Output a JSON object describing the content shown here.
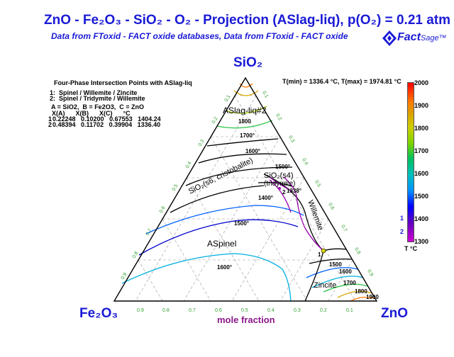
{
  "header": {
    "title": "ZnO - Fe₂O₃ - SiO₂ - O₂ -  Projection (ASlag-liq),  p(O₂) = 0.21 atm",
    "subtitle": "Data from FToxid - FACT oxide databases,  Data from FToxid - FACT oxide",
    "logo_text": "Fact",
    "logo_sage": "Sage",
    "logo_tm": "™"
  },
  "vertices": {
    "top": "SiO₂",
    "left": "Fe₂O₃",
    "right": "ZnO"
  },
  "axis_label": "mole fraction",
  "legend_box": {
    "heading": "Four-Phase Intersection Points with ASlag-liq",
    "items": [
      "1:  Spinel / Willemite / Zincite",
      "2:  Spinel / Tridymite / Willemite"
    ],
    "key": "A = SiO2,  B = Fe2O3,  C = ZnO",
    "columns": "  X(A)      X(B)      X(C)      °C",
    "rows": [
      "0.22248   0.10200   0.67553   1404.24",
      "0.48394   0.11702   0.39904   1336.40"
    ],
    "row_ids": [
      "1",
      "2"
    ]
  },
  "trange": "T(min) = 1336.4 °C, T(max) = 1974.81 °C",
  "colorbar": {
    "ticks": [
      "2000",
      "1900",
      "1800",
      "1700",
      "1600",
      "1500",
      "1400",
      "1300"
    ],
    "unit": "T °C",
    "markers": [
      "1",
      "2"
    ],
    "gradient_colors": [
      "#ff0000",
      "#ff7a00",
      "#cfcf00",
      "#7fd400",
      "#00c060",
      "#00bfbf",
      "#0090ff",
      "#0000ff",
      "#6000c0",
      "#d000d0"
    ]
  },
  "phase_labels": {
    "slag": "ASlag-liq#2",
    "cristobalite": "SiO₂(s6, cristobalite)",
    "tridymite_a": "SiO₂(s4)",
    "tridymite_b": "(tridymite)",
    "willemite": "Willemite",
    "spinel": "ASpinel",
    "zincite": "Zincite"
  },
  "isotherm_labels": {
    "t1800": "1800",
    "t1700": "1700°",
    "t1600": "1600°",
    "t1500a": "1500°",
    "t1400": "1400°",
    "t1338": "1338°",
    "t1500b": "1500°",
    "t1600b": "1600°",
    "r1500": "1500",
    "r1600": "1600",
    "r1700": "1700",
    "r1800": "1800",
    "r1900": "1900",
    "pt2": "2",
    "pt1": "1"
  },
  "bottom_ticks": [
    "0.9",
    "0.8",
    "0.7",
    "0.6",
    "0.5",
    "0.4",
    "0.3",
    "0.2",
    "0.1"
  ],
  "left_ticks": [
    "0.9",
    "0.8",
    "0.7",
    "0.6",
    "0.5",
    "0.4",
    "0.3",
    "0.2",
    "0.1"
  ],
  "right_ticks": [
    "0.1",
    "0.2",
    "0.3",
    "0.4",
    "0.5",
    "0.6",
    "0.7",
    "0.8",
    "0.9"
  ],
  "colors": {
    "title": "#1a1ad6",
    "axis_label": "#8b1a8b",
    "tick": "#2e9e2e"
  }
}
